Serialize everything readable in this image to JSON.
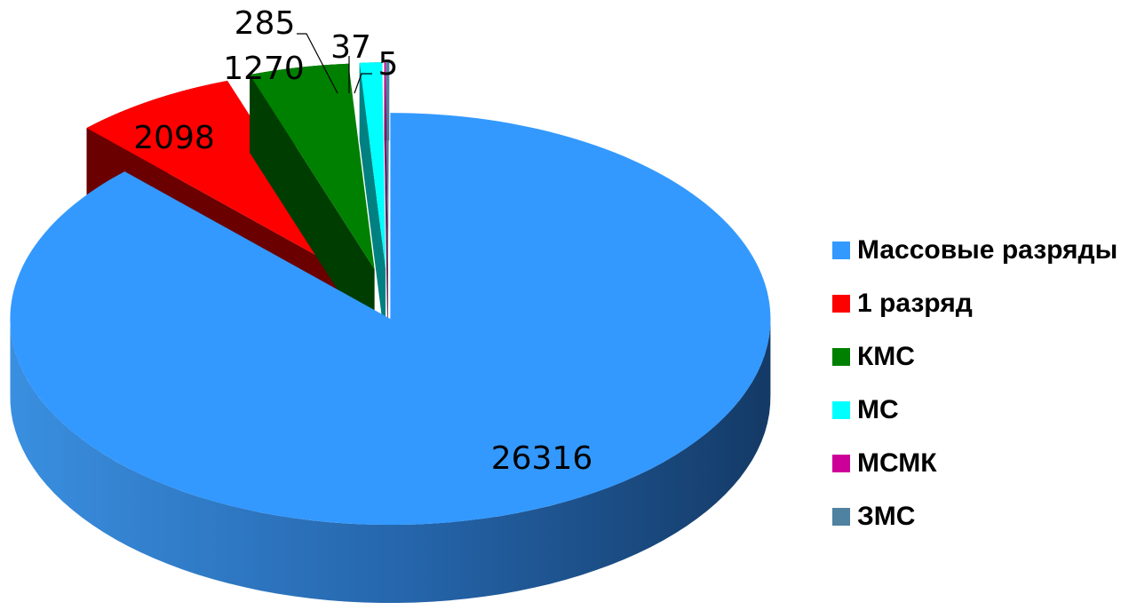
{
  "chart_data": {
    "type": "pie",
    "title": "",
    "categories": [
      "Массовые разряды",
      "1 разряд",
      "КМС",
      "МС",
      "МСМК",
      "ЗМС"
    ],
    "values": [
      26316,
      2098,
      1270,
      285,
      5,
      37
    ],
    "labels": [
      "26316",
      "2098",
      "1270",
      "285",
      "5",
      "37"
    ],
    "colors": [
      "#3399ff",
      "#ff0000",
      "#008000",
      "#00ffff",
      "#cc0099",
      "#4f81a0"
    ],
    "side_colors": [
      "#1b4f86",
      "#6b0000",
      "#003d00",
      "#008080",
      "#660050",
      "#2a4a5e"
    ],
    "legend_position": "right",
    "style": "3d-exploded"
  }
}
